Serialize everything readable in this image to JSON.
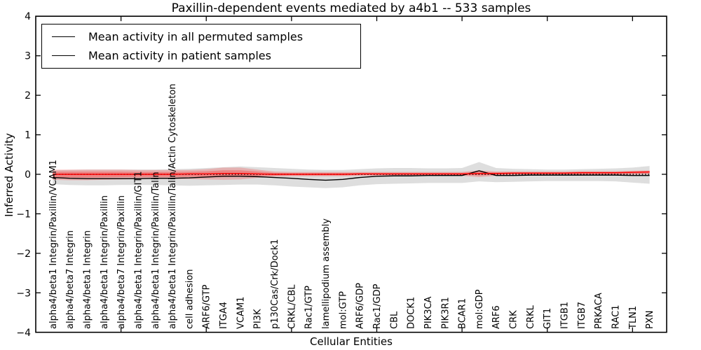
{
  "chart_data": {
    "type": "line",
    "title": "Paxillin-dependent events mediated by a4b1 -- 533 samples",
    "xlabel": "Cellular Entities",
    "ylabel": "Inferred Activity",
    "ylim": [
      -4,
      4
    ],
    "yticks": [
      4,
      3,
      2,
      1,
      0,
      -1,
      -2,
      -3,
      -4
    ],
    "xtick_mark_values": [
      5,
      10,
      15,
      20,
      25,
      30,
      35
    ],
    "grid": false,
    "legend_position": "upper left",
    "zero_line": {
      "y": 0,
      "style": "dotted",
      "color": "#000000"
    },
    "colors": {
      "permuted_line": "#000000",
      "patient_line": "#ff0000",
      "permuted_band": "rgba(0,0,0,0.13)",
      "patient_band": "rgba(255,0,0,0.20)",
      "patient_band_inner": "rgba(255,0,0,0.25)"
    },
    "categories": [
      "alpha4/beta1 Integrin/Paxillin/VCAM1",
      "alpha4/beta7 Integrin",
      "alpha4/beta1 Integrin",
      "alpha4/beta1 Integrin/Paxillin",
      "alpha4/beta7 Integrin/Paxillin",
      "alpha4/beta1 Integrin/Paxillin/GIT1",
      "alpha4/beta1 Integrin/Paxillin/Talin",
      "alpha4/beta1 Integrin/Paxillin/Talin/Actin Cytoskeleton",
      "cell adhesion",
      "ARF6/GTP",
      "ITGA4",
      "VCAM1",
      "PI3K",
      "p130Cas/Crk/Dock1",
      "CRKL/CBL",
      "Rac1/GTP",
      "lamellipodium assembly",
      "mol:GTP",
      "ARF6/GDP",
      "Rac1/GDP",
      "CBL",
      "DOCK1",
      "PIK3CA",
      "PIK3R1",
      "BCAR1",
      "mol:GDP",
      "ARF6",
      "CRK",
      "CRKL",
      "GIT1",
      "ITGB1",
      "ITGB7",
      "PRKACA",
      "RAC1",
      "TLN1",
      "PXN"
    ],
    "series": [
      {
        "name": "Mean activity in all permuted samples",
        "color": "#000000",
        "values": [
          -0.08,
          -0.1,
          -0.11,
          -0.11,
          -0.11,
          -0.11,
          -0.1,
          -0.1,
          -0.09,
          -0.07,
          -0.05,
          -0.05,
          -0.06,
          -0.08,
          -0.1,
          -0.13,
          -0.15,
          -0.13,
          -0.08,
          -0.05,
          -0.04,
          -0.04,
          -0.03,
          -0.03,
          -0.03,
          0.09,
          -0.03,
          -0.03,
          -0.02,
          -0.02,
          -0.02,
          -0.02,
          -0.02,
          -0.02,
          -0.03,
          -0.03
        ],
        "band_hi": [
          0.1,
          0.11,
          0.12,
          0.12,
          0.12,
          0.12,
          0.12,
          0.13,
          0.14,
          0.16,
          0.18,
          0.2,
          0.18,
          0.16,
          0.14,
          0.12,
          0.11,
          0.11,
          0.13,
          0.15,
          0.16,
          0.16,
          0.15,
          0.15,
          0.16,
          0.31,
          0.16,
          0.14,
          0.13,
          0.12,
          0.12,
          0.13,
          0.14,
          0.15,
          0.17,
          0.21
        ],
        "band_lo": [
          -0.25,
          -0.27,
          -0.28,
          -0.28,
          -0.27,
          -0.27,
          -0.27,
          -0.28,
          -0.29,
          -0.28,
          -0.27,
          -0.26,
          -0.26,
          -0.28,
          -0.31,
          -0.33,
          -0.35,
          -0.33,
          -0.28,
          -0.25,
          -0.24,
          -0.23,
          -0.22,
          -0.22,
          -0.22,
          -0.18,
          -0.2,
          -0.19,
          -0.18,
          -0.17,
          -0.17,
          -0.17,
          -0.17,
          -0.18,
          -0.21,
          -0.24
        ]
      },
      {
        "name": "Mean activity in patient samples",
        "color": "#ff0000",
        "values": [
          0.0,
          0.0,
          0.0,
          0.0,
          0.0,
          0.0,
          0.0,
          0.0,
          0.01,
          0.01,
          0.02,
          0.02,
          0.01,
          0.0,
          0.0,
          0.0,
          0.0,
          0.0,
          0.01,
          0.01,
          0.01,
          0.01,
          0.01,
          0.01,
          0.01,
          0.02,
          0.02,
          0.03,
          0.03,
          0.03,
          0.03,
          0.04,
          0.04,
          0.04,
          0.05,
          0.06
        ],
        "band_hi": [
          0.12,
          0.12,
          0.12,
          0.12,
          0.12,
          0.11,
          0.11,
          0.11,
          0.11,
          0.13,
          0.17,
          0.17,
          0.12,
          0.07,
          0.06,
          0.06,
          0.06,
          0.06,
          0.06,
          0.06,
          0.06,
          0.06,
          0.06,
          0.06,
          0.06,
          0.1,
          0.07,
          0.07,
          0.07,
          0.07,
          0.07,
          0.08,
          0.08,
          0.08,
          0.09,
          0.1
        ],
        "band_lo": [
          -0.14,
          -0.15,
          -0.15,
          -0.14,
          -0.13,
          -0.12,
          -0.12,
          -0.12,
          -0.12,
          -0.13,
          -0.14,
          -0.13,
          -0.09,
          -0.06,
          -0.05,
          -0.05,
          -0.05,
          -0.05,
          -0.04,
          -0.04,
          -0.04,
          -0.04,
          -0.04,
          -0.04,
          -0.04,
          -0.07,
          -0.04,
          -0.03,
          -0.03,
          -0.03,
          -0.02,
          -0.02,
          -0.02,
          -0.02,
          -0.01,
          0.0
        ]
      }
    ]
  }
}
